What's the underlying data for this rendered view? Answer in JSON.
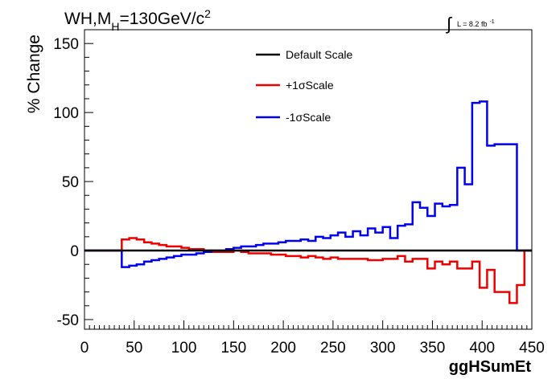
{
  "title": {
    "process": "WH,M",
    "subscript": "H",
    "value": "=130GeV/c",
    "superscript": "2"
  },
  "lumi": {
    "integral_symbol": "∫",
    "text": "L = 8.2 fb",
    "exponent": "-1"
  },
  "chart_data": {
    "type": "line",
    "xlabel": "ggHSumEt",
    "ylabel": "% Change",
    "xlim": [
      0,
      450
    ],
    "ylim": [
      -57,
      160
    ],
    "xticks": [
      0,
      50,
      100,
      150,
      200,
      250,
      300,
      350,
      400,
      450
    ],
    "yticks": [
      -50,
      0,
      50,
      100,
      150
    ],
    "grid": false,
    "legend_position": "top-center",
    "legend": [
      "Default Scale",
      "+1σScale",
      "-1σScale"
    ],
    "series": [
      {
        "name": "Default Scale",
        "color": "#000000",
        "bin_edges": [
          0,
          450
        ],
        "values": [
          0
        ]
      },
      {
        "name": "+1σScale",
        "color": "#ee0000",
        "bin_edges": [
          0,
          37.5,
          45,
          52.5,
          60,
          67.5,
          75,
          82.5,
          90,
          97.5,
          105,
          112.5,
          120,
          127.5,
          135,
          142.5,
          150,
          157.5,
          165,
          172.5,
          180,
          187.5,
          195,
          202.5,
          210,
          217.5,
          225,
          232.5,
          240,
          247.5,
          255,
          262.5,
          270,
          277.5,
          285,
          292.5,
          300,
          307.5,
          315,
          322.5,
          330,
          337.5,
          345,
          352.5,
          360,
          367.5,
          375,
          382.5,
          390,
          397.5,
          405,
          412.5,
          420,
          427.5,
          435,
          442.5,
          450
        ],
        "values": [
          0,
          8,
          9,
          8,
          6,
          5,
          4,
          3,
          3,
          2,
          1,
          1,
          0,
          -1,
          -1,
          -1,
          0,
          -1,
          -2,
          -2,
          -2,
          -3,
          -3,
          -4,
          -4,
          -5,
          -4,
          -5,
          -6,
          -5,
          -6,
          -6,
          -6,
          -6,
          -7,
          -7,
          -6,
          -6,
          -4,
          -8,
          -6,
          -6,
          -13,
          -8,
          -10,
          -8,
          -13,
          -13,
          -8,
          -27,
          -14,
          -30,
          -30,
          -38,
          -25,
          0
        ]
      },
      {
        "name": "-1σScale",
        "color": "#0000ee",
        "bin_edges": [
          0,
          37.5,
          45,
          52.5,
          60,
          67.5,
          75,
          82.5,
          90,
          97.5,
          105,
          112.5,
          120,
          127.5,
          135,
          142.5,
          150,
          157.5,
          165,
          172.5,
          180,
          187.5,
          195,
          202.5,
          210,
          217.5,
          225,
          232.5,
          240,
          247.5,
          255,
          262.5,
          270,
          277.5,
          285,
          292.5,
          300,
          307.5,
          315,
          322.5,
          330,
          337.5,
          345,
          352.5,
          360,
          367.5,
          375,
          382.5,
          390,
          397.5,
          405,
          412.5,
          420,
          427.5,
          435,
          442.5,
          450
        ],
        "values": [
          0,
          -12,
          -11,
          -10,
          -8,
          -7,
          -6,
          -5,
          -4,
          -3,
          -3,
          -2,
          -1,
          0,
          0,
          1,
          2,
          3,
          3,
          4,
          5,
          5,
          6,
          7,
          7,
          8,
          7,
          10,
          9,
          11,
          13,
          10,
          14,
          11,
          16,
          13,
          17,
          9,
          18,
          19,
          35,
          31,
          25,
          34,
          32,
          33,
          60,
          48,
          107,
          108,
          76,
          77,
          77,
          77,
          0,
          0
        ]
      }
    ]
  }
}
